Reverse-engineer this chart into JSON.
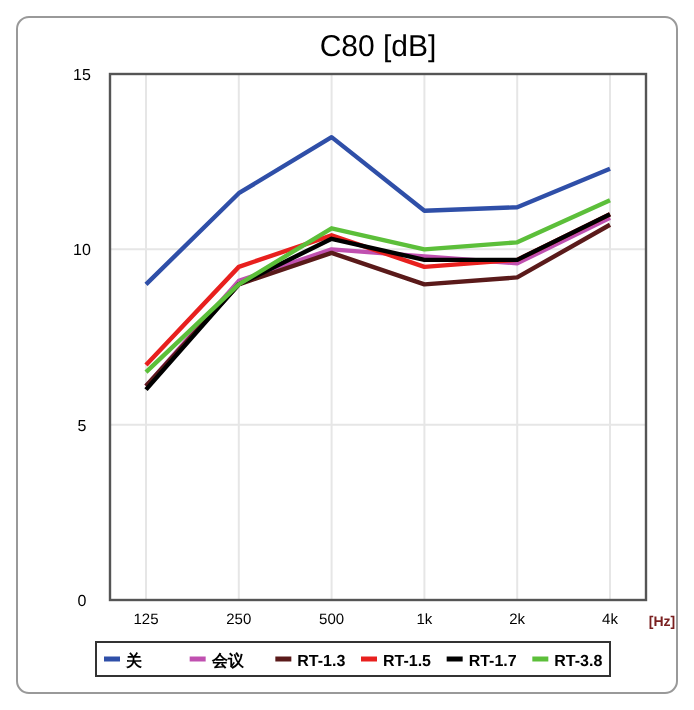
{
  "chart_data": {
    "type": "line",
    "title": "C80 [dB]",
    "xlabel": "[Hz]",
    "categories": [
      "125",
      "250",
      "500",
      "1k",
      "2k",
      "4k"
    ],
    "ylim": [
      0,
      15
    ],
    "yticks": [
      0,
      5,
      10,
      15
    ],
    "grid": true,
    "legend": "bottom",
    "marker": "none",
    "line_style": "solid",
    "series": [
      {
        "name": "关",
        "color": "#2f4fa8",
        "values": [
          9.0,
          11.6,
          13.2,
          11.1,
          11.2,
          12.3
        ]
      },
      {
        "name": "会议",
        "color": "#c050b0",
        "values": [
          6.1,
          9.1,
          10.0,
          9.8,
          9.6,
          10.9
        ]
      },
      {
        "name": "RT-1.3",
        "color": "#5a1a1a",
        "values": [
          6.1,
          9.0,
          9.9,
          9.0,
          9.2,
          10.7
        ]
      },
      {
        "name": "RT-1.5",
        "color": "#e8201e",
        "values": [
          6.7,
          9.5,
          10.4,
          9.5,
          9.7,
          11.0
        ]
      },
      {
        "name": "RT-1.7",
        "color": "#000000",
        "values": [
          6.0,
          9.0,
          10.3,
          9.7,
          9.7,
          11.0
        ]
      },
      {
        "name": "RT-3.8",
        "color": "#5cbf3a",
        "values": [
          6.5,
          9.0,
          10.6,
          10.0,
          10.2,
          11.4
        ]
      }
    ]
  }
}
